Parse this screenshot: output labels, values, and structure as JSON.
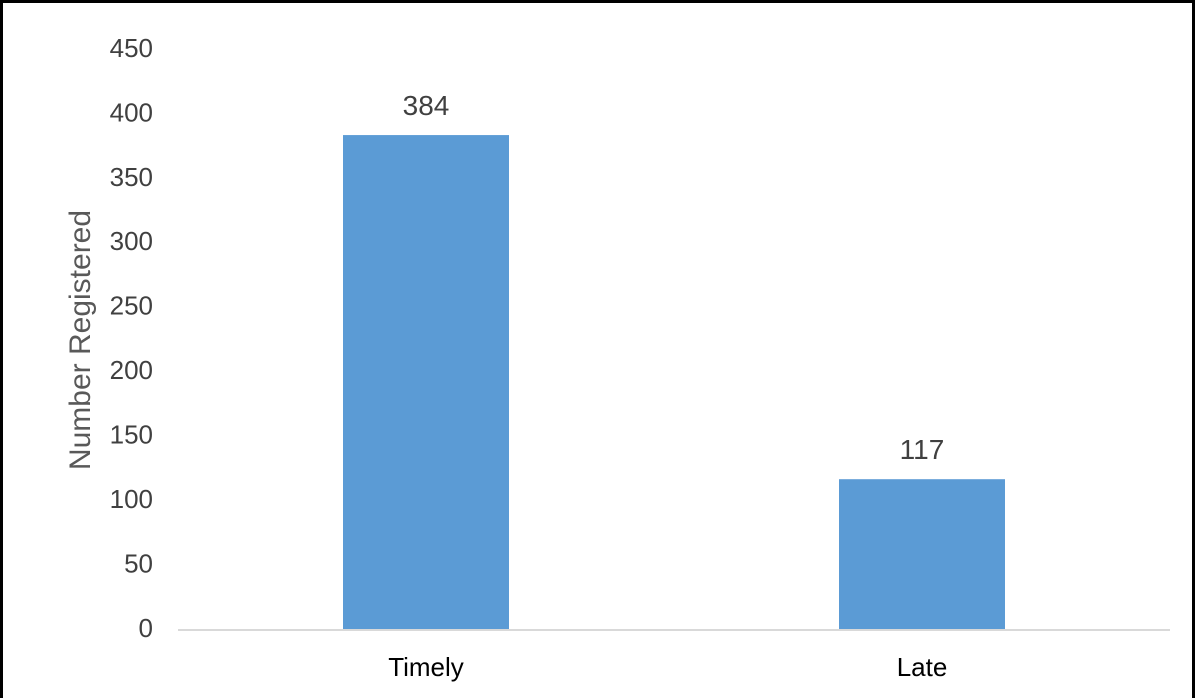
{
  "chart_data": {
    "type": "bar",
    "categories": [
      "Timely",
      "Late"
    ],
    "values": [
      384,
      117
    ],
    "data_labels": [
      "384",
      "117"
    ],
    "title": "",
    "xlabel": "",
    "ylabel": "Number Registered",
    "ylim": [
      0,
      450
    ],
    "yticks": [
      0,
      50,
      100,
      150,
      200,
      250,
      300,
      350,
      400,
      450
    ],
    "grid": false,
    "legend": "none",
    "bar_color": "#5B9BD5",
    "axis_color": "#D9D9D9"
  }
}
